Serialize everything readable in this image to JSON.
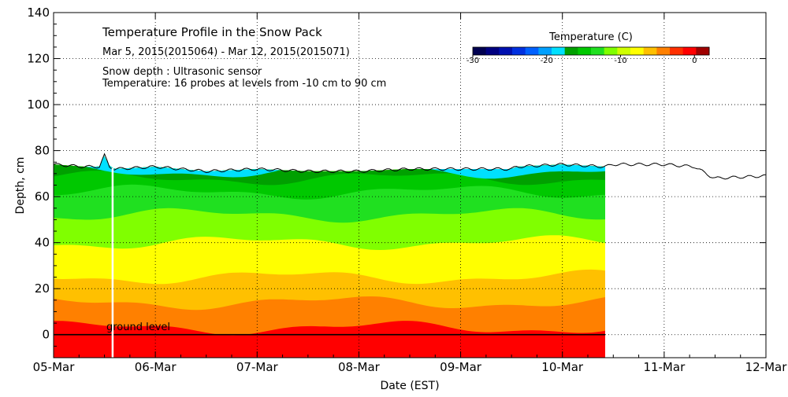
{
  "chart_data": {
    "type": "heatmap",
    "title": "Temperature Profile in the Snow Pack",
    "subtitle": "Mar  5, 2015(2015064) - Mar 12, 2015(2015071)",
    "notes": [
      "Snow depth : Ultrasonic sensor",
      "Temperature: 16 probes at levels from -10 cm to 90 cm"
    ],
    "xlabel": "Date (EST)",
    "ylabel": "Depth, cm",
    "x_tick_labels": [
      "05-Mar",
      "06-Mar",
      "07-Mar",
      "08-Mar",
      "09-Mar",
      "10-Mar",
      "11-Mar",
      "12-Mar"
    ],
    "xlim_days": [
      0,
      7
    ],
    "y_ticks": [
      0,
      20,
      40,
      60,
      80,
      100,
      120,
      140
    ],
    "ylim": [
      -10,
      140
    ],
    "grid": true,
    "ground_level_label": "ground level",
    "ground_level_y": 0,
    "data_end_day": 5.42,
    "colorbar": {
      "title": "Temperature (C)",
      "tick_labels": [
        "-30",
        "-20",
        "-10",
        "0"
      ],
      "tick_values": [
        -30,
        -20,
        -10,
        0
      ],
      "range": [
        -30,
        2
      ],
      "colors": [
        "#000050",
        "#000080",
        "#0010b0",
        "#0030e0",
        "#0060ff",
        "#00a0ff",
        "#00e0ff",
        "#00a000",
        "#00c800",
        "#20e020",
        "#80ff00",
        "#d0ff00",
        "#ffff00",
        "#ffc000",
        "#ff8000",
        "#ff3000",
        "#ff0000",
        "#a00000"
      ]
    },
    "temperature_bands": [
      {
        "label": "ground",
        "color": "#ff0000",
        "base_depth": -10
      },
      {
        "label": "warmest layer",
        "color": "#ff8000",
        "base_depth": 3
      },
      {
        "label": "orange-yellow",
        "color": "#ffc000",
        "base_depth": 14
      },
      {
        "label": "yellow",
        "color": "#ffff00",
        "base_depth": 25
      },
      {
        "label": "yellow-green",
        "color": "#80ff00",
        "base_depth": 40
      },
      {
        "label": "green",
        "color": "#20e020",
        "base_depth": 52
      },
      {
        "label": "dark green",
        "color": "#00c800",
        "base_depth": 62
      },
      {
        "label": "darker green",
        "color": "#00a000",
        "base_depth": 68
      },
      {
        "label": "cold surface",
        "color": "#00e0ff",
        "base_depth": 71
      }
    ],
    "snow_depth": {
      "x_days": [
        0,
        0.3,
        0.45,
        0.5,
        0.55,
        0.6,
        1.0,
        1.5,
        2.0,
        2.5,
        3.0,
        3.5,
        4.0,
        4.5,
        4.55,
        5.0,
        5.42,
        5.5,
        6.0,
        6.3,
        6.45,
        6.5,
        7.0
      ],
      "depth_cm": [
        74,
        73,
        73,
        78,
        73,
        72,
        73,
        71,
        72,
        71,
        71,
        72,
        72,
        72,
        73,
        74,
        73,
        74,
        74,
        73,
        69,
        68,
        69
      ]
    },
    "sensor_gap_day": 0.58
  }
}
